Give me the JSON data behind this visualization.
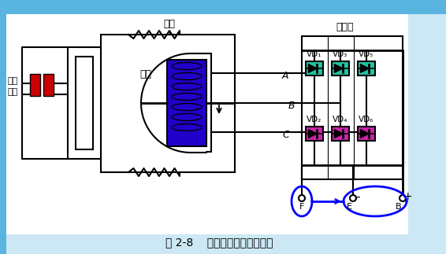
{
  "title": "图 2-8    交流发电机工作原理图",
  "bg_top": "#5ab4e0",
  "bg_main": "#cce8f4",
  "label_dingzi": "定子",
  "label_zhuanzi": "转子",
  "label_huanjuanshua": "滑环\n电刷",
  "label_zhengliu": "整流器",
  "vd_top_labels": [
    "VD₁",
    "VD₃",
    "VD₅"
  ],
  "vd_bot_labels": [
    "VD₂",
    "VD₄",
    "VD₆"
  ],
  "abc_labels": [
    "A",
    "B",
    "C"
  ],
  "teal_color": "#1fc4a0",
  "magenta_color": "#cc22aa",
  "rotor_color": "#2200cc",
  "brush_color": "#cc0000"
}
